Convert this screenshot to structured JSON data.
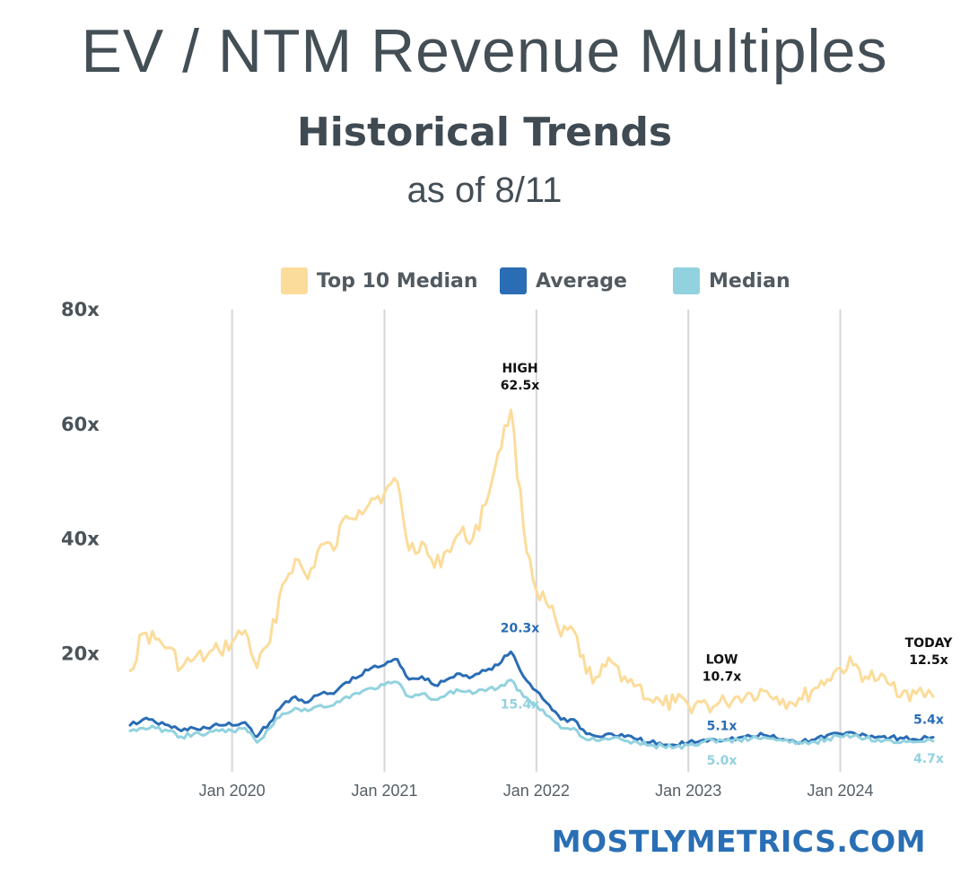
{
  "header": {
    "title": "EV / NTM Revenue Multiples",
    "subtitle": "Historical Trends",
    "as_of": "as of 8/11"
  },
  "brand": "MOSTLYMETRICS.COM",
  "colors": {
    "top10": "#fcdc9b",
    "average": "#2a6db5",
    "median": "#92d2df",
    "grid": "#d6d6d6",
    "axis_text": "#3f4a52",
    "annot_dark": "#111111"
  },
  "chart_data": {
    "type": "line",
    "title": "EV / NTM Revenue Multiples",
    "subtitle": "Historical Trends",
    "ylim": [
      0,
      80
    ],
    "y_ticks": [
      "20x",
      "40x",
      "60x",
      "80x"
    ],
    "y_tick_values": [
      20,
      40,
      60,
      80
    ],
    "x_range": [
      "2019-05-01",
      "2024-08-11"
    ],
    "x_ticks": [
      {
        "label": "Jan 2020",
        "date": "2020-01-01"
      },
      {
        "label": "Jan 2021",
        "date": "2021-01-01"
      },
      {
        "label": "Jan 2022",
        "date": "2022-01-01"
      },
      {
        "label": "Jan 2023",
        "date": "2023-01-01"
      },
      {
        "label": "Jan 2024",
        "date": "2024-01-01"
      }
    ],
    "grid": "vertical",
    "legend_position": "top",
    "series": [
      {
        "name": "Top 10 Median",
        "color": "#fcdc9b",
        "points": [
          [
            "2019-05-01",
            17.0
          ],
          [
            "2019-06-01",
            23.5
          ],
          [
            "2019-07-01",
            22.5
          ],
          [
            "2019-08-01",
            21.0
          ],
          [
            "2019-09-01",
            17.5
          ],
          [
            "2019-10-01",
            19.0
          ],
          [
            "2019-11-01",
            19.5
          ],
          [
            "2019-12-01",
            20.5
          ],
          [
            "2020-01-01",
            22.0
          ],
          [
            "2020-02-01",
            24.0
          ],
          [
            "2020-03-01",
            17.5
          ],
          [
            "2020-04-01",
            22.0
          ],
          [
            "2020-05-01",
            32.0
          ],
          [
            "2020-06-01",
            36.5
          ],
          [
            "2020-07-01",
            33.0
          ],
          [
            "2020-08-01",
            39.0
          ],
          [
            "2020-09-01",
            38.0
          ],
          [
            "2020-10-01",
            44.0
          ],
          [
            "2020-11-01",
            45.0
          ],
          [
            "2020-12-01",
            47.0
          ],
          [
            "2021-01-01",
            48.0
          ],
          [
            "2021-02-01",
            50.0
          ],
          [
            "2021-03-01",
            38.0
          ],
          [
            "2021-04-01",
            39.5
          ],
          [
            "2021-05-01",
            35.0
          ],
          [
            "2021-06-01",
            38.0
          ],
          [
            "2021-07-01",
            41.0
          ],
          [
            "2021-08-01",
            40.0
          ],
          [
            "2021-09-01",
            46.0
          ],
          [
            "2021-10-01",
            55.0
          ],
          [
            "2021-11-01",
            62.5
          ],
          [
            "2021-12-01",
            42.0
          ],
          [
            "2022-01-01",
            31.0
          ],
          [
            "2022-02-01",
            28.0
          ],
          [
            "2022-03-01",
            23.0
          ],
          [
            "2022-04-01",
            24.0
          ],
          [
            "2022-05-01",
            16.5
          ],
          [
            "2022-06-01",
            16.0
          ],
          [
            "2022-07-01",
            18.5
          ],
          [
            "2022-08-01",
            16.0
          ],
          [
            "2022-09-01",
            14.5
          ],
          [
            "2022-10-01",
            12.0
          ],
          [
            "2022-11-01",
            11.0
          ],
          [
            "2022-12-01",
            11.5
          ],
          [
            "2023-01-01",
            11.0
          ],
          [
            "2023-02-01",
            11.5
          ],
          [
            "2023-03-01",
            10.7
          ],
          [
            "2023-04-01",
            11.5
          ],
          [
            "2023-05-01",
            12.5
          ],
          [
            "2023-06-01",
            13.0
          ],
          [
            "2023-07-01",
            13.5
          ],
          [
            "2023-08-01",
            12.5
          ],
          [
            "2023-09-01",
            11.5
          ],
          [
            "2023-10-01",
            12.0
          ],
          [
            "2023-11-01",
            14.0
          ],
          [
            "2023-12-01",
            15.5
          ],
          [
            "2024-01-01",
            17.5
          ],
          [
            "2024-02-01",
            18.0
          ],
          [
            "2024-03-01",
            16.0
          ],
          [
            "2024-04-01",
            15.5
          ],
          [
            "2024-05-01",
            14.5
          ],
          [
            "2024-06-01",
            13.5
          ],
          [
            "2024-07-01",
            13.0
          ],
          [
            "2024-08-11",
            12.5
          ]
        ]
      },
      {
        "name": "Average",
        "color": "#2a6db5",
        "points": [
          [
            "2019-05-01",
            7.5
          ],
          [
            "2019-06-01",
            8.5
          ],
          [
            "2019-07-01",
            8.0
          ],
          [
            "2019-08-01",
            7.5
          ],
          [
            "2019-09-01",
            6.5
          ],
          [
            "2019-10-01",
            7.0
          ],
          [
            "2019-11-01",
            7.0
          ],
          [
            "2019-12-01",
            7.5
          ],
          [
            "2020-01-01",
            7.5
          ],
          [
            "2020-02-01",
            8.0
          ],
          [
            "2020-03-01",
            5.5
          ],
          [
            "2020-04-01",
            8.0
          ],
          [
            "2020-05-01",
            11.0
          ],
          [
            "2020-06-01",
            12.5
          ],
          [
            "2020-07-01",
            11.5
          ],
          [
            "2020-08-01",
            13.0
          ],
          [
            "2020-09-01",
            13.0
          ],
          [
            "2020-10-01",
            15.0
          ],
          [
            "2020-11-01",
            16.0
          ],
          [
            "2020-12-01",
            17.5
          ],
          [
            "2021-01-01",
            18.0
          ],
          [
            "2021-02-01",
            19.0
          ],
          [
            "2021-03-01",
            15.5
          ],
          [
            "2021-04-01",
            16.0
          ],
          [
            "2021-05-01",
            14.5
          ],
          [
            "2021-06-01",
            15.5
          ],
          [
            "2021-07-01",
            16.5
          ],
          [
            "2021-08-01",
            16.0
          ],
          [
            "2021-09-01",
            17.0
          ],
          [
            "2021-10-01",
            18.0
          ],
          [
            "2021-11-01",
            20.3
          ],
          [
            "2021-12-01",
            16.0
          ],
          [
            "2022-01-01",
            13.5
          ],
          [
            "2022-02-01",
            11.0
          ],
          [
            "2022-03-01",
            8.5
          ],
          [
            "2022-04-01",
            8.5
          ],
          [
            "2022-05-01",
            6.0
          ],
          [
            "2022-06-01",
            5.5
          ],
          [
            "2022-07-01",
            6.0
          ],
          [
            "2022-08-01",
            5.5
          ],
          [
            "2022-09-01",
            5.0
          ],
          [
            "2022-10-01",
            4.5
          ],
          [
            "2022-11-01",
            4.0
          ],
          [
            "2022-12-01",
            4.0
          ],
          [
            "2023-01-01",
            4.5
          ],
          [
            "2023-02-01",
            4.8
          ],
          [
            "2023-03-01",
            5.1
          ],
          [
            "2023-04-01",
            5.0
          ],
          [
            "2023-05-01",
            5.3
          ],
          [
            "2023-06-01",
            5.5
          ],
          [
            "2023-07-01",
            5.8
          ],
          [
            "2023-08-01",
            5.2
          ],
          [
            "2023-09-01",
            4.8
          ],
          [
            "2023-10-01",
            4.6
          ],
          [
            "2023-11-01",
            5.0
          ],
          [
            "2023-12-01",
            5.8
          ],
          [
            "2024-01-01",
            6.0
          ],
          [
            "2024-02-01",
            6.2
          ],
          [
            "2024-03-01",
            5.8
          ],
          [
            "2024-04-01",
            5.5
          ],
          [
            "2024-05-01",
            5.4
          ],
          [
            "2024-06-01",
            5.2
          ],
          [
            "2024-07-01",
            5.0
          ],
          [
            "2024-08-11",
            5.4
          ]
        ]
      },
      {
        "name": "Median",
        "color": "#92d2df",
        "points": [
          [
            "2019-05-01",
            6.5
          ],
          [
            "2019-06-01",
            7.0
          ],
          [
            "2019-07-01",
            7.0
          ],
          [
            "2019-08-01",
            6.5
          ],
          [
            "2019-09-01",
            5.5
          ],
          [
            "2019-10-01",
            6.0
          ],
          [
            "2019-11-01",
            6.0
          ],
          [
            "2019-12-01",
            6.5
          ],
          [
            "2020-01-01",
            6.5
          ],
          [
            "2020-02-01",
            7.0
          ],
          [
            "2020-03-01",
            4.5
          ],
          [
            "2020-04-01",
            7.0
          ],
          [
            "2020-05-01",
            9.5
          ],
          [
            "2020-06-01",
            10.5
          ],
          [
            "2020-07-01",
            10.0
          ],
          [
            "2020-08-01",
            11.0
          ],
          [
            "2020-09-01",
            11.0
          ],
          [
            "2020-10-01",
            12.5
          ],
          [
            "2020-11-01",
            13.0
          ],
          [
            "2020-12-01",
            14.0
          ],
          [
            "2021-01-01",
            14.5
          ],
          [
            "2021-02-01",
            15.0
          ],
          [
            "2021-03-01",
            12.5
          ],
          [
            "2021-04-01",
            13.0
          ],
          [
            "2021-05-01",
            12.0
          ],
          [
            "2021-06-01",
            13.0
          ],
          [
            "2021-07-01",
            13.5
          ],
          [
            "2021-08-01",
            13.0
          ],
          [
            "2021-09-01",
            13.5
          ],
          [
            "2021-10-01",
            14.0
          ],
          [
            "2021-11-01",
            15.4
          ],
          [
            "2021-12-01",
            12.5
          ],
          [
            "2022-01-01",
            11.0
          ],
          [
            "2022-02-01",
            9.0
          ],
          [
            "2022-03-01",
            7.0
          ],
          [
            "2022-04-01",
            7.0
          ],
          [
            "2022-05-01",
            5.0
          ],
          [
            "2022-06-01",
            4.8
          ],
          [
            "2022-07-01",
            5.2
          ],
          [
            "2022-08-01",
            4.8
          ],
          [
            "2022-09-01",
            4.5
          ],
          [
            "2022-10-01",
            4.0
          ],
          [
            "2022-11-01",
            3.8
          ],
          [
            "2022-12-01",
            3.7
          ],
          [
            "2023-01-01",
            4.0
          ],
          [
            "2023-02-01",
            4.5
          ],
          [
            "2023-03-01",
            5.0
          ],
          [
            "2023-04-01",
            4.8
          ],
          [
            "2023-05-01",
            5.0
          ],
          [
            "2023-06-01",
            5.2
          ],
          [
            "2023-07-01",
            5.4
          ],
          [
            "2023-08-01",
            4.9
          ],
          [
            "2023-09-01",
            4.5
          ],
          [
            "2023-10-01",
            4.3
          ],
          [
            "2023-11-01",
            4.6
          ],
          [
            "2023-12-01",
            5.2
          ],
          [
            "2024-01-01",
            5.5
          ],
          [
            "2024-02-01",
            5.6
          ],
          [
            "2024-03-01",
            5.2
          ],
          [
            "2024-04-01",
            5.0
          ],
          [
            "2024-05-01",
            4.9
          ],
          [
            "2024-06-01",
            4.8
          ],
          [
            "2024-07-01",
            4.6
          ],
          [
            "2024-08-11",
            4.7
          ]
        ]
      }
    ],
    "annotations": [
      {
        "id": "high",
        "lines": [
          "HIGH",
          "62.5x"
        ],
        "date": "2021-11-01",
        "value": 62.5,
        "color": "#111111"
      },
      {
        "id": "low",
        "lines": [
          "LOW",
          "10.7x"
        ],
        "date": "2023-03-01",
        "value": 10.7,
        "color": "#111111"
      },
      {
        "id": "today",
        "lines": [
          "TODAY",
          "12.5x"
        ],
        "date": "2024-08-11",
        "value": 12.5,
        "color": "#111111"
      },
      {
        "id": "avg-high",
        "lines": [
          "20.3x"
        ],
        "date": "2021-11-01",
        "value": 20.3,
        "color": "#2a6db5"
      },
      {
        "id": "median-high",
        "lines": [
          "15.4x"
        ],
        "date": "2021-11-01",
        "value": 15.4,
        "color": "#92d2df"
      },
      {
        "id": "avg-low",
        "lines": [
          "5.1x"
        ],
        "date": "2023-03-01",
        "value": 5.1,
        "color": "#2a6db5"
      },
      {
        "id": "median-low",
        "lines": [
          "5.0x"
        ],
        "date": "2023-03-01",
        "value": 5.0,
        "color": "#92d2df"
      },
      {
        "id": "avg-today",
        "lines": [
          "5.4x"
        ],
        "date": "2024-08-11",
        "value": 5.4,
        "color": "#2a6db5"
      },
      {
        "id": "median-today",
        "lines": [
          "4.7x"
        ],
        "date": "2024-08-11",
        "value": 4.7,
        "color": "#92d2df"
      }
    ]
  }
}
